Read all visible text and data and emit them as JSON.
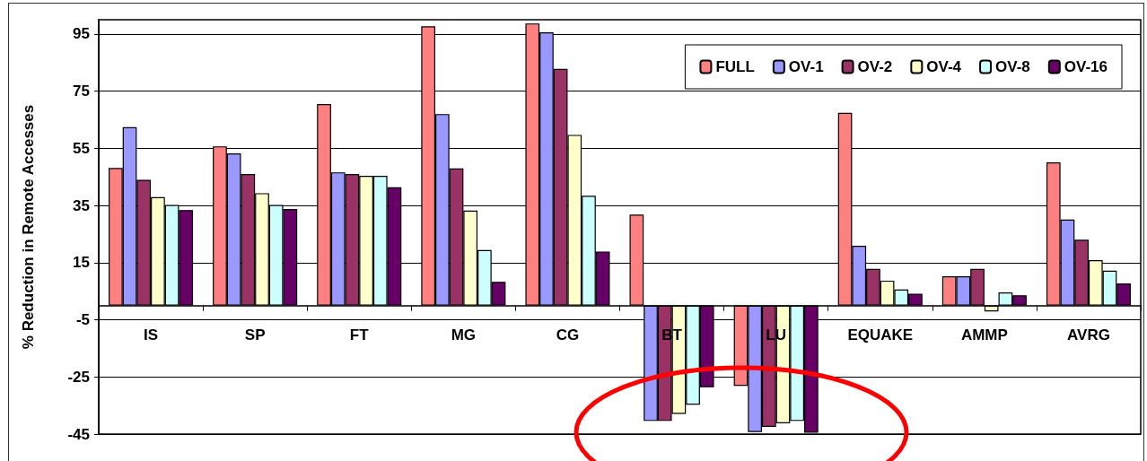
{
  "chart_data": {
    "type": "bar",
    "ylabel": "% Reduction in Remote Accesses",
    "categories": [
      "IS",
      "SP",
      "FT",
      "MG",
      "CG",
      "BT",
      "LU",
      "EQUAKE",
      "AMMP",
      "AVRG"
    ],
    "series": [
      {
        "name": "FULL",
        "color": "#ff8080",
        "values": [
          48.1,
          55.7,
          70.5,
          97.7,
          98.7,
          31.8,
          -28.1,
          67.4,
          10.2,
          50.1
        ]
      },
      {
        "name": "OV-1",
        "color": "#9999ff",
        "values": [
          62.4,
          53.2,
          46.6,
          67.0,
          95.6,
          -40.4,
          -44.3,
          20.9,
          10.2,
          30.1
        ]
      },
      {
        "name": "OV-2",
        "color": "#993366",
        "values": [
          44.0,
          46.0,
          46.0,
          48.0,
          82.8,
          -40.4,
          -42.5,
          12.8,
          12.8,
          23.0
        ]
      },
      {
        "name": "OV-4",
        "color": "#ffffcc",
        "values": [
          37.9,
          39.3,
          45.4,
          33.2,
          59.7,
          -37.9,
          -41.2,
          8.7,
          -2.1,
          15.9
        ]
      },
      {
        "name": "OV-8",
        "color": "#ccffff",
        "values": [
          35.2,
          35.2,
          45.4,
          19.4,
          38.4,
          -34.7,
          -40.4,
          5.6,
          4.6,
          12.2
        ]
      },
      {
        "name": "OV-16",
        "color": "#660066",
        "values": [
          33.4,
          33.8,
          41.4,
          8.3,
          18.9,
          -28.6,
          -44.5,
          4.1,
          3.6,
          7.7
        ]
      }
    ],
    "ylim": [
      -45,
      100
    ],
    "yticks": [
      95,
      75,
      55,
      35,
      15,
      -5,
      -25,
      -45
    ],
    "grid": "y",
    "legend": "top right"
  }
}
